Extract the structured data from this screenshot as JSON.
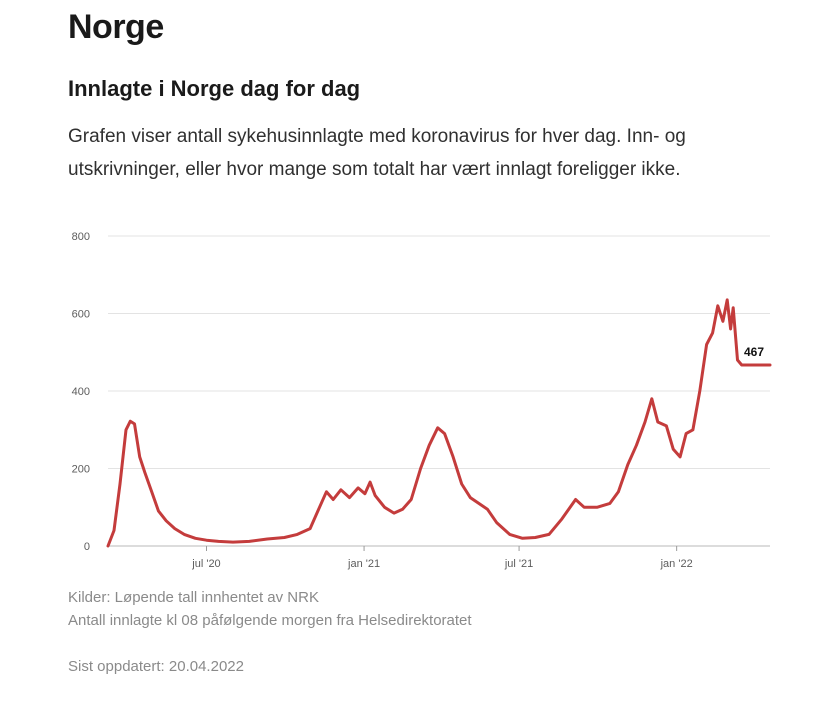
{
  "header": {
    "title": "Norge"
  },
  "chart_section": {
    "heading": "Innlagte i Norge dag for dag",
    "description": "Grafen viser antall sykehusinnlagte med koronavirus for hver dag. Inn- og utskrivninger, eller hvor mange som totalt har vært innlagt foreligger ikke."
  },
  "footer": {
    "source_line1": "Kilder: Løpende tall innhentet av NRK",
    "source_line2": "Antall innlagte kl 08 påfølgende morgen fra Helsedirektoratet",
    "updated": "Sist oppdatert: 20.04.2022"
  },
  "chart_data": {
    "type": "line",
    "title": "Innlagte i Norge dag for dag",
    "xlabel": "",
    "ylabel": "",
    "grid": true,
    "legend": "none",
    "color": "#c43c3c",
    "ylim": [
      0,
      800
    ],
    "yticks": [
      0,
      200,
      400,
      600,
      800
    ],
    "xticks": [
      {
        "x": "2020-07-01",
        "label": "jul '20"
      },
      {
        "x": "2021-01-01",
        "label": "jan '21"
      },
      {
        "x": "2021-07-01",
        "label": "jul '21"
      },
      {
        "x": "2022-01-01",
        "label": "jan '22"
      }
    ],
    "xlim": [
      "2020-03-08",
      "2022-04-20"
    ],
    "end_label": "467",
    "series": [
      {
        "name": "Innlagte",
        "points": [
          [
            "2020-03-08",
            0
          ],
          [
            "2020-03-15",
            40
          ],
          [
            "2020-03-22",
            160
          ],
          [
            "2020-03-29",
            300
          ],
          [
            "2020-04-03",
            322
          ],
          [
            "2020-04-08",
            315
          ],
          [
            "2020-04-14",
            230
          ],
          [
            "2020-04-20",
            190
          ],
          [
            "2020-04-28",
            140
          ],
          [
            "2020-05-06",
            90
          ],
          [
            "2020-05-15",
            65
          ],
          [
            "2020-05-25",
            45
          ],
          [
            "2020-06-05",
            30
          ],
          [
            "2020-06-18",
            20
          ],
          [
            "2020-07-01",
            15
          ],
          [
            "2020-07-15",
            12
          ],
          [
            "2020-08-01",
            10
          ],
          [
            "2020-08-20",
            12
          ],
          [
            "2020-09-10",
            18
          ],
          [
            "2020-09-30",
            22
          ],
          [
            "2020-10-15",
            30
          ],
          [
            "2020-10-30",
            45
          ],
          [
            "2020-11-10",
            100
          ],
          [
            "2020-11-18",
            140
          ],
          [
            "2020-11-26",
            120
          ],
          [
            "2020-12-05",
            145
          ],
          [
            "2020-12-15",
            125
          ],
          [
            "2020-12-25",
            150
          ],
          [
            "2021-01-02",
            135
          ],
          [
            "2021-01-08",
            165
          ],
          [
            "2021-01-14",
            130
          ],
          [
            "2021-01-25",
            100
          ],
          [
            "2021-02-05",
            85
          ],
          [
            "2021-02-15",
            95
          ],
          [
            "2021-02-25",
            120
          ],
          [
            "2021-03-08",
            200
          ],
          [
            "2021-03-18",
            260
          ],
          [
            "2021-03-28",
            305
          ],
          [
            "2021-04-05",
            290
          ],
          [
            "2021-04-15",
            230
          ],
          [
            "2021-04-25",
            160
          ],
          [
            "2021-05-05",
            125
          ],
          [
            "2021-05-15",
            110
          ],
          [
            "2021-05-25",
            95
          ],
          [
            "2021-06-05",
            60
          ],
          [
            "2021-06-20",
            30
          ],
          [
            "2021-07-05",
            20
          ],
          [
            "2021-07-20",
            22
          ],
          [
            "2021-08-05",
            30
          ],
          [
            "2021-08-20",
            70
          ],
          [
            "2021-09-05",
            120
          ],
          [
            "2021-09-15",
            100
          ],
          [
            "2021-09-30",
            100
          ],
          [
            "2021-10-15",
            110
          ],
          [
            "2021-10-25",
            140
          ],
          [
            "2021-11-05",
            210
          ],
          [
            "2021-11-15",
            260
          ],
          [
            "2021-11-25",
            320
          ],
          [
            "2021-12-03",
            380
          ],
          [
            "2021-12-10",
            320
          ],
          [
            "2021-12-20",
            310
          ],
          [
            "2021-12-28",
            250
          ],
          [
            "2022-01-05",
            230
          ],
          [
            "2022-01-12",
            290
          ],
          [
            "2022-01-20",
            300
          ],
          [
            "2022-01-28",
            400
          ],
          [
            "2022-02-05",
            520
          ],
          [
            "2022-02-12",
            550
          ],
          [
            "2022-02-18",
            620
          ],
          [
            "2022-02-24",
            580
          ],
          [
            "2022-03-01",
            635
          ],
          [
            "2022-03-05",
            560
          ],
          [
            "2022-03-08",
            615
          ],
          [
            "2022-03-13",
            480
          ],
          [
            "2022-03-18",
            467
          ],
          [
            "2022-04-20",
            467
          ]
        ]
      }
    ]
  }
}
